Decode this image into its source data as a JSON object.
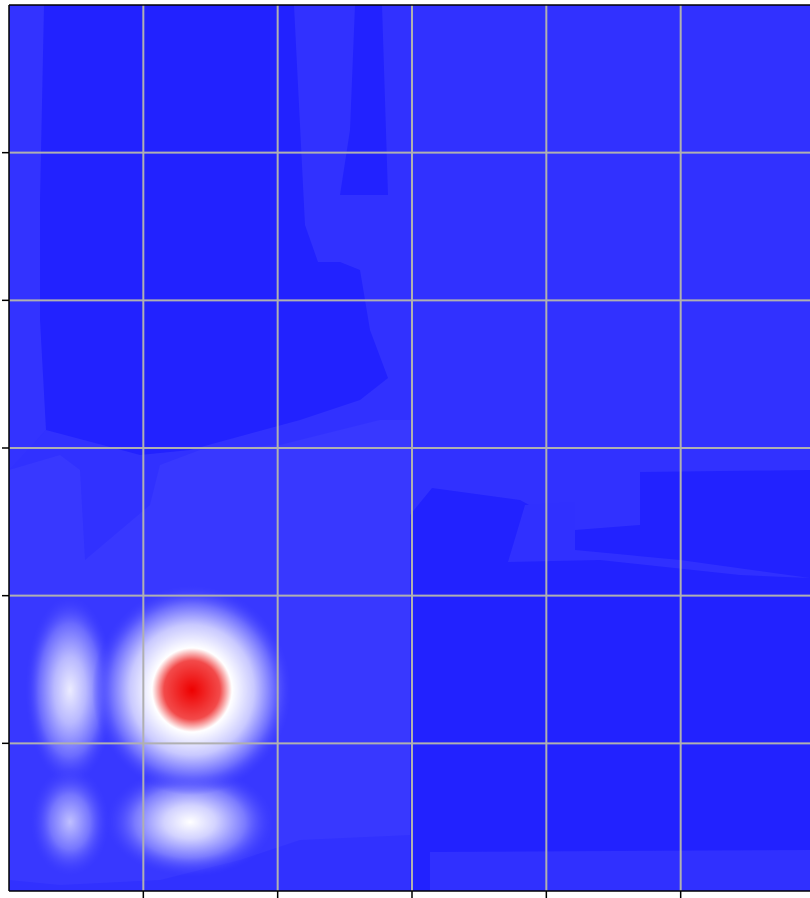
{
  "chart_data": {
    "type": "heatmap",
    "subtype": "filled-contour",
    "title": "",
    "xlabel": "",
    "ylabel": "",
    "xlim": [
      0,
      6
    ],
    "ylim": [
      0,
      6
    ],
    "x_gridlines": [
      1,
      2,
      3,
      4,
      5
    ],
    "y_gridlines": [
      1,
      2,
      3,
      4,
      5
    ],
    "grid": true,
    "tick_labels_visible": false,
    "colormap": [
      "#1a1aff",
      "#ffffff",
      "#ff0000"
    ],
    "background_color": "#2222ff",
    "grid_color": "#b0b0b0",
    "peaks": [
      {
        "x": 1.35,
        "y": 1.05,
        "intensity": 1.0
      },
      {
        "x": 0.45,
        "y": 1.05,
        "intensity": 0.45
      },
      {
        "x": 1.35,
        "y": 0.45,
        "intensity": 0.5
      },
      {
        "x": 0.45,
        "y": 0.45,
        "intensity": 0.3
      }
    ]
  }
}
